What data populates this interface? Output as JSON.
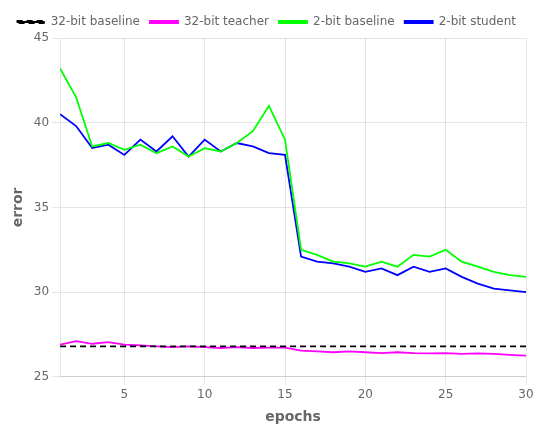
{
  "chart_data": {
    "type": "line",
    "xlabel": "epochs",
    "ylabel": "error",
    "xlim": [
      1,
      30
    ],
    "ylim": [
      25,
      45
    ],
    "xticks": [
      5,
      10,
      15,
      20,
      25,
      30
    ],
    "yticks": [
      25,
      30,
      35,
      40,
      45
    ],
    "grid": true,
    "legend": "upper right",
    "series": [
      {
        "name": "32-bit baseline",
        "color": "#000000",
        "line_style": "dashed",
        "x": [
          1,
          30
        ],
        "values": [
          26.8,
          26.8
        ]
      },
      {
        "name": "32-bit teacher",
        "color": "#FF00FF",
        "line_style": "solid",
        "x": [
          1,
          2,
          3,
          4,
          5,
          6,
          7,
          8,
          9,
          10,
          11,
          12,
          13,
          14,
          15,
          16,
          17,
          18,
          19,
          20,
          21,
          22,
          23,
          24,
          25,
          26,
          27,
          28,
          29,
          30
        ],
        "values": [
          26.9,
          27.1,
          26.95,
          27.05,
          26.9,
          26.85,
          26.8,
          26.75,
          26.8,
          26.75,
          26.7,
          26.75,
          26.7,
          26.72,
          26.72,
          26.55,
          26.5,
          26.45,
          26.5,
          26.45,
          26.4,
          26.45,
          26.4,
          26.38,
          26.4,
          26.35,
          26.38,
          26.35,
          26.3,
          26.25
        ]
      },
      {
        "name": "2-bit baseline",
        "color": "#00FF00",
        "line_style": "solid",
        "x": [
          1,
          2,
          3,
          4,
          5,
          6,
          7,
          8,
          9,
          10,
          11,
          12,
          13,
          14,
          15,
          16,
          17,
          18,
          19,
          20,
          21,
          22,
          23,
          24,
          25,
          26,
          27,
          28,
          29,
          30
        ],
        "values": [
          43.2,
          41.5,
          38.6,
          38.8,
          38.4,
          38.7,
          38.2,
          38.6,
          38.0,
          38.5,
          38.3,
          38.8,
          39.5,
          41.0,
          39.0,
          32.5,
          32.2,
          31.8,
          31.7,
          31.5,
          31.8,
          31.5,
          32.2,
          32.1,
          32.5,
          31.8,
          31.5,
          31.2,
          31.0,
          30.9
        ]
      },
      {
        "name": "2-bit student",
        "color": "#0000FF",
        "line_style": "solid",
        "x": [
          1,
          2,
          3,
          4,
          5,
          6,
          7,
          8,
          9,
          10,
          11,
          12,
          13,
          14,
          15,
          16,
          17,
          18,
          19,
          20,
          21,
          22,
          23,
          24,
          25,
          26,
          27,
          28,
          29,
          30
        ],
        "values": [
          40.5,
          39.8,
          38.5,
          38.7,
          38.1,
          39.0,
          38.3,
          39.2,
          38.0,
          39.0,
          38.3,
          38.8,
          38.6,
          38.2,
          38.1,
          32.1,
          31.8,
          31.7,
          31.5,
          31.2,
          31.4,
          31.0,
          31.5,
          31.2,
          31.4,
          30.9,
          30.5,
          30.2,
          30.1,
          30.0
        ]
      }
    ]
  }
}
